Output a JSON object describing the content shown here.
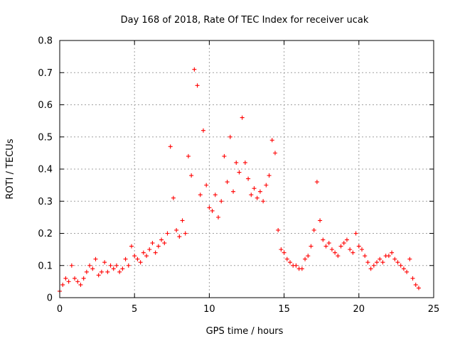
{
  "chart_data": {
    "type": "scatter",
    "title": "Day 168 of 2018, Rate Of TEC Index for receiver ucak",
    "xlabel": "GPS time / hours",
    "ylabel": "ROTI / TECUs",
    "xlim": [
      0,
      25
    ],
    "ylim": [
      0,
      0.8
    ],
    "xticks": [
      0,
      5,
      10,
      15,
      20,
      25
    ],
    "xtick_labels": [
      "0",
      "5",
      "10",
      "15",
      "20",
      "25"
    ],
    "yticks": [
      0,
      0.1,
      0.2,
      0.3,
      0.4,
      0.5,
      0.6,
      0.7,
      0.8
    ],
    "ytick_labels": [
      "0",
      "0.1",
      "0.2",
      "0.3",
      "0.4",
      "0.5",
      "0.6",
      "0.7",
      "0.8"
    ],
    "grid": true,
    "marker": "+",
    "marker_color": "#ff0000",
    "series": [
      {
        "name": "ROTI",
        "x": [
          0.0,
          0.2,
          0.4,
          0.6,
          0.8,
          1.0,
          1.2,
          1.4,
          1.6,
          1.8,
          2.0,
          2.2,
          2.4,
          2.6,
          2.8,
          3.0,
          3.2,
          3.4,
          3.6,
          3.8,
          4.0,
          4.2,
          4.4,
          4.6,
          4.8,
          5.0,
          5.2,
          5.4,
          5.6,
          5.8,
          6.0,
          6.2,
          6.4,
          6.6,
          6.8,
          7.0,
          7.2,
          7.4,
          7.6,
          7.8,
          8.0,
          8.2,
          8.4,
          8.6,
          8.8,
          9.0,
          9.2,
          9.4,
          9.6,
          9.8,
          10.0,
          10.2,
          10.4,
          10.6,
          10.8,
          11.0,
          11.2,
          11.4,
          11.6,
          11.8,
          12.0,
          12.2,
          12.4,
          12.6,
          12.8,
          13.0,
          13.2,
          13.4,
          13.6,
          13.8,
          14.0,
          14.2,
          14.4,
          14.6,
          14.8,
          15.0,
          15.2,
          15.4,
          15.6,
          15.8,
          16.0,
          16.2,
          16.4,
          16.6,
          16.8,
          17.0,
          17.2,
          17.4,
          17.6,
          17.8,
          18.0,
          18.2,
          18.4,
          18.6,
          18.8,
          19.0,
          19.2,
          19.4,
          19.6,
          19.8,
          20.0,
          20.2,
          20.4,
          20.6,
          20.8,
          21.0,
          21.2,
          21.4,
          21.6,
          21.8,
          22.0,
          22.2,
          22.4,
          22.6,
          22.8,
          23.0,
          23.2,
          23.4,
          23.6,
          23.8,
          24.0
        ],
        "y": [
          0.02,
          0.04,
          0.06,
          0.05,
          0.1,
          0.06,
          0.05,
          0.04,
          0.06,
          0.08,
          0.1,
          0.09,
          0.12,
          0.07,
          0.08,
          0.11,
          0.08,
          0.1,
          0.09,
          0.1,
          0.08,
          0.09,
          0.12,
          0.1,
          0.16,
          0.13,
          0.12,
          0.11,
          0.14,
          0.13,
          0.15,
          0.17,
          0.14,
          0.16,
          0.18,
          0.17,
          0.2,
          0.47,
          0.31,
          0.21,
          0.19,
          0.24,
          0.2,
          0.44,
          0.38,
          0.71,
          0.66,
          0.32,
          0.52,
          0.35,
          0.28,
          0.27,
          0.32,
          0.25,
          0.3,
          0.44,
          0.36,
          0.5,
          0.33,
          0.42,
          0.39,
          0.56,
          0.42,
          0.37,
          0.32,
          0.34,
          0.31,
          0.33,
          0.3,
          0.35,
          0.38,
          0.49,
          0.45,
          0.21,
          0.15,
          0.14,
          0.12,
          0.11,
          0.1,
          0.1,
          0.09,
          0.09,
          0.12,
          0.13,
          0.16,
          0.21,
          0.36,
          0.24,
          0.18,
          0.16,
          0.17,
          0.15,
          0.14,
          0.13,
          0.16,
          0.17,
          0.18,
          0.15,
          0.14,
          0.2,
          0.16,
          0.15,
          0.13,
          0.11,
          0.09,
          0.1,
          0.11,
          0.12,
          0.11,
          0.13,
          0.13,
          0.14,
          0.12,
          0.11,
          0.1,
          0.09,
          0.08,
          0.12,
          0.06,
          0.04,
          0.03
        ]
      }
    ]
  }
}
